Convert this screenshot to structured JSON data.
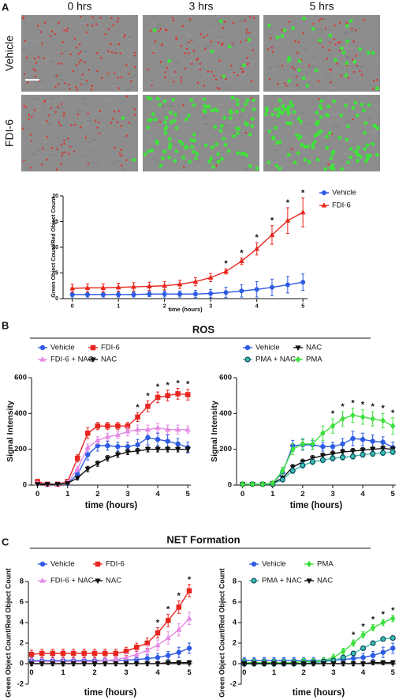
{
  "panel_a": {
    "label": "A",
    "columns": [
      "0 hrs",
      "3 hrs",
      "5 hrs"
    ],
    "rows": [
      "Vehicle",
      "FDI-6"
    ]
  },
  "panel_b": {
    "label": "B",
    "title": "ROS"
  },
  "panel_c": {
    "label": "C",
    "title": "NET Formation"
  },
  "chart_data": [
    {
      "type": "line",
      "xlabel": "time (hours)",
      "ylabel": "Green Object Count/Red Object Count",
      "x": [
        0,
        0.33,
        0.67,
        1,
        1.33,
        1.67,
        2,
        2.33,
        2.67,
        3,
        3.33,
        3.67,
        4,
        4.33,
        4.67,
        5
      ],
      "xlim": [
        -0.2,
        5.1
      ],
      "xticks": [
        0,
        1,
        2,
        3,
        4,
        5
      ],
      "ylim": [
        0,
        20
      ],
      "yticks": [
        0,
        5,
        10,
        15,
        20
      ],
      "legend": "right",
      "legend_columns": 1,
      "series": [
        {
          "name": "Vehicle",
          "color": "#2d5be3",
          "marker": "circle",
          "values": [
            0.8,
            0.8,
            0.8,
            0.8,
            0.8,
            0.9,
            0.9,
            0.9,
            0.9,
            1.0,
            1.2,
            1.5,
            1.8,
            2.2,
            2.7,
            3.2
          ],
          "errors": [
            0.5,
            0.5,
            0.5,
            0.5,
            0.5,
            0.5,
            0.6,
            0.6,
            0.7,
            0.8,
            1.0,
            1.2,
            1.5,
            1.6,
            1.6,
            1.6
          ]
        },
        {
          "name": "FDI-6",
          "color": "#e8261f",
          "marker": "triangle",
          "values": [
            2.0,
            2.1,
            2.1,
            2.2,
            2.3,
            2.4,
            2.5,
            2.8,
            3.3,
            4.1,
            5.3,
            7.3,
            9.7,
            12.4,
            15.2,
            16.8
          ],
          "errors": [
            0.8,
            0.8,
            0.8,
            0.8,
            0.8,
            0.8,
            0.8,
            0.8,
            0.8,
            0.8,
            0.5,
            0.6,
            1.2,
            1.8,
            2.5,
            2.8
          ]
        }
      ],
      "annotations": [
        {
          "x": 3.33,
          "text": "*"
        },
        {
          "x": 3.67,
          "text": "*"
        },
        {
          "x": 4,
          "text": "*"
        },
        {
          "x": 4.33,
          "text": "*"
        },
        {
          "x": 4.67,
          "text": "*"
        },
        {
          "x": 5,
          "text": "*"
        }
      ]
    },
    {
      "type": "line",
      "xlabel": "time (hours)",
      "ylabel": "Signal Intensity",
      "x": [
        0,
        0.33,
        0.67,
        1,
        1.33,
        1.67,
        2,
        2.33,
        2.67,
        3,
        3.33,
        3.67,
        4,
        4.33,
        4.67,
        5
      ],
      "xlim": [
        -0.2,
        5.1
      ],
      "xticks": [
        0,
        1,
        2,
        3,
        4,
        5
      ],
      "ylim": [
        0,
        600
      ],
      "yticks": [
        0,
        200,
        400,
        600
      ],
      "legend": "upper left",
      "legend_columns": 2,
      "series": [
        {
          "name": "Vehicle",
          "color": "#2d5be3",
          "marker": "circle",
          "values": [
            10,
            5,
            5,
            10,
            60,
            170,
            220,
            220,
            215,
            215,
            225,
            265,
            255,
            245,
            230,
            210
          ],
          "errors": [
            10,
            5,
            5,
            10,
            20,
            30,
            30,
            25,
            25,
            25,
            30,
            40,
            35,
            35,
            30,
            30
          ]
        },
        {
          "name": "FDI-6",
          "color": "#e8261f",
          "marker": "square",
          "values": [
            20,
            5,
            5,
            20,
            150,
            290,
            330,
            330,
            330,
            330,
            380,
            440,
            490,
            500,
            510,
            505
          ],
          "errors": [
            10,
            5,
            5,
            10,
            20,
            30,
            20,
            20,
            20,
            20,
            25,
            30,
            30,
            30,
            30,
            30
          ]
        },
        {
          "name": "FDI-6 + NAC",
          "color": "#e58be6",
          "marker": "triangle",
          "values": [
            10,
            5,
            5,
            15,
            90,
            210,
            250,
            270,
            280,
            300,
            310,
            310,
            320,
            310,
            310,
            310
          ],
          "errors": [
            10,
            5,
            5,
            10,
            15,
            20,
            20,
            20,
            20,
            25,
            25,
            25,
            25,
            25,
            25,
            20
          ]
        },
        {
          "name": "NAC",
          "color": "#111111",
          "marker": "triangle-down",
          "values": [
            5,
            5,
            5,
            10,
            40,
            90,
            120,
            150,
            170,
            185,
            190,
            200,
            200,
            200,
            200,
            200
          ],
          "errors": [
            5,
            5,
            5,
            5,
            10,
            15,
            15,
            15,
            15,
            15,
            15,
            15,
            15,
            15,
            15,
            15
          ]
        }
      ],
      "annotations": [
        {
          "x": 3.33,
          "text": "*"
        },
        {
          "x": 3.67,
          "text": "*"
        },
        {
          "x": 4,
          "text": "*"
        },
        {
          "x": 4.33,
          "text": "*"
        },
        {
          "x": 4.67,
          "text": "*"
        },
        {
          "x": 5,
          "text": "*"
        }
      ]
    },
    {
      "type": "line",
      "xlabel": "time (hours)",
      "ylabel": "Signal Intensity",
      "x": [
        0,
        0.33,
        0.67,
        1,
        1.33,
        1.67,
        2,
        2.33,
        2.67,
        3,
        3.33,
        3.67,
        4,
        4.33,
        4.67,
        5
      ],
      "xlim": [
        -0.2,
        5.1
      ],
      "xticks": [
        0,
        1,
        2,
        3,
        4,
        5
      ],
      "ylim": [
        0,
        600
      ],
      "yticks": [
        0,
        200,
        400,
        600
      ],
      "legend": "upper left",
      "legend_columns": 2,
      "series": [
        {
          "name": "Vehicle",
          "color": "#2d5be3",
          "marker": "circle",
          "values": [
            5,
            5,
            5,
            10,
            70,
            220,
            225,
            225,
            215,
            215,
            230,
            260,
            255,
            245,
            240,
            210
          ],
          "errors": [
            5,
            5,
            5,
            10,
            20,
            30,
            30,
            25,
            25,
            25,
            30,
            40,
            35,
            35,
            30,
            30
          ]
        },
        {
          "name": "NAC",
          "color": "#111111",
          "marker": "triangle-down",
          "values": [
            5,
            5,
            5,
            10,
            40,
            100,
            130,
            150,
            165,
            175,
            185,
            190,
            195,
            200,
            205,
            200
          ],
          "errors": [
            5,
            5,
            5,
            5,
            10,
            15,
            15,
            15,
            15,
            15,
            15,
            15,
            15,
            15,
            15,
            15
          ]
        },
        {
          "name": "PMA + NAC",
          "color": "#35c0b0",
          "edgecolor": "#0a2a4a",
          "marker": "circle",
          "values": [
            5,
            5,
            5,
            5,
            30,
            80,
            110,
            130,
            140,
            150,
            155,
            160,
            170,
            175,
            180,
            185
          ],
          "errors": [
            5,
            5,
            5,
            5,
            10,
            15,
            15,
            15,
            15,
            15,
            15,
            15,
            15,
            15,
            15,
            15
          ]
        },
        {
          "name": "PMA",
          "color": "#3de03d",
          "marker": "diamond",
          "values": [
            5,
            5,
            5,
            10,
            80,
            200,
            230,
            230,
            290,
            330,
            370,
            390,
            380,
            370,
            360,
            330
          ],
          "errors": [
            5,
            5,
            5,
            10,
            20,
            30,
            30,
            30,
            40,
            40,
            40,
            40,
            40,
            40,
            40,
            45
          ]
        }
      ],
      "annotations": [
        {
          "x": 3,
          "text": "*"
        },
        {
          "x": 3.33,
          "text": "*"
        },
        {
          "x": 3.67,
          "text": "*"
        },
        {
          "x": 4,
          "text": "*"
        },
        {
          "x": 4.33,
          "text": "*"
        },
        {
          "x": 4.67,
          "text": "*"
        },
        {
          "x": 5,
          "text": "*"
        }
      ]
    },
    {
      "type": "line",
      "xlabel": "time (hours)",
      "ylabel": "Green Object Count/Red Object Count",
      "x": [
        0,
        0.33,
        0.67,
        1,
        1.33,
        1.67,
        2,
        2.33,
        2.67,
        3,
        3.33,
        3.67,
        4,
        4.33,
        4.67,
        5
      ],
      "xlim": [
        -0.1,
        5.1
      ],
      "xticks": [
        0,
        1,
        2,
        3,
        4,
        5
      ],
      "ylim": [
        -2,
        8
      ],
      "yticks": [
        -2,
        0,
        2,
        4,
        6,
        8
      ],
      "legend": "upper left",
      "legend_columns": 2,
      "series": [
        {
          "name": "Vehicle",
          "color": "#2d5be3",
          "marker": "circle",
          "values": [
            0.3,
            0.3,
            0.3,
            0.3,
            0.3,
            0.3,
            0.3,
            0.3,
            0.3,
            0.35,
            0.4,
            0.5,
            0.6,
            0.8,
            1.1,
            1.5
          ],
          "errors": [
            0.3,
            0.3,
            0.3,
            0.3,
            0.3,
            0.3,
            0.3,
            0.3,
            0.3,
            0.3,
            0.3,
            0.4,
            0.4,
            0.4,
            0.5,
            0.5
          ]
        },
        {
          "name": "FDI-6",
          "color": "#e8261f",
          "marker": "square",
          "values": [
            0.9,
            1.0,
            1.0,
            1.0,
            1.0,
            1.0,
            1.0,
            1.0,
            1.0,
            1.2,
            1.6,
            2.0,
            3.0,
            4.2,
            5.5,
            7.1
          ],
          "errors": [
            0.4,
            0.4,
            0.4,
            0.4,
            0.4,
            0.4,
            0.4,
            0.4,
            0.4,
            0.4,
            0.4,
            0.5,
            0.5,
            0.6,
            0.6,
            0.6
          ]
        },
        {
          "name": "FDI-6 + NAC",
          "color": "#e58be6",
          "marker": "triangle",
          "values": [
            0.2,
            0.2,
            0.2,
            0.2,
            0.2,
            0.2,
            0.2,
            0.3,
            0.4,
            0.6,
            0.9,
            1.3,
            1.8,
            2.5,
            3.3,
            4.4
          ],
          "errors": [
            0.3,
            0.3,
            0.3,
            0.3,
            0.3,
            0.3,
            0.3,
            0.3,
            0.3,
            0.4,
            0.4,
            0.5,
            0.5,
            0.6,
            0.6,
            0.6
          ]
        },
        {
          "name": "NAC",
          "color": "#111111",
          "marker": "triangle-down",
          "values": [
            0,
            0,
            0,
            0,
            0,
            0,
            0,
            0,
            0,
            0,
            0,
            0,
            0,
            0.1,
            0.1,
            0.1
          ],
          "errors": [
            0.2,
            0.2,
            0.2,
            0.2,
            0.2,
            0.2,
            0.2,
            0.2,
            0.2,
            0.2,
            0.2,
            0.2,
            0.2,
            0.2,
            0.2,
            0.2
          ]
        }
      ],
      "annotations": [
        {
          "x": 4,
          "text": "*"
        },
        {
          "x": 4.33,
          "text": "*"
        },
        {
          "x": 4.67,
          "text": "*"
        },
        {
          "x": 5,
          "text": "*"
        }
      ]
    },
    {
      "type": "line",
      "xlabel": "time (hours)",
      "ylabel": "Green Object Count/Red Object Count",
      "x": [
        0,
        0.33,
        0.67,
        1,
        1.33,
        1.67,
        2,
        2.33,
        2.67,
        3,
        3.33,
        3.67,
        4,
        4.33,
        4.67,
        5
      ],
      "xlim": [
        -0.1,
        5.1
      ],
      "xticks": [
        0,
        1,
        2,
        3,
        4,
        5
      ],
      "ylim": [
        -2,
        8
      ],
      "yticks": [
        -2,
        0,
        2,
        4,
        6,
        8
      ],
      "legend": "upper left",
      "legend_columns": 2,
      "series": [
        {
          "name": "Vehicle",
          "color": "#2d5be3",
          "marker": "circle",
          "values": [
            0.3,
            0.3,
            0.3,
            0.3,
            0.3,
            0.3,
            0.3,
            0.3,
            0.3,
            0.35,
            0.4,
            0.5,
            0.6,
            0.8,
            1.1,
            1.5
          ],
          "errors": [
            0.3,
            0.3,
            0.3,
            0.3,
            0.3,
            0.3,
            0.3,
            0.3,
            0.3,
            0.3,
            0.3,
            0.4,
            0.4,
            0.4,
            0.5,
            0.5
          ]
        },
        {
          "name": "PMA",
          "color": "#3de03d",
          "marker": "diamond",
          "values": [
            0.1,
            0.1,
            0.1,
            0.1,
            0.1,
            0.1,
            0.2,
            0.2,
            0.3,
            0.6,
            1.2,
            2.0,
            2.8,
            3.5,
            4.0,
            4.4
          ],
          "errors": [
            0.3,
            0.3,
            0.3,
            0.3,
            0.3,
            0.3,
            0.3,
            0.3,
            0.3,
            0.3,
            0.3,
            0.3,
            0.3,
            0.3,
            0.3,
            0.3
          ]
        },
        {
          "name": "PMA + NAC",
          "color": "#35c0b0",
          "edgecolor": "#0a2a4a",
          "marker": "circle",
          "values": [
            0,
            0,
            0,
            0,
            0,
            0,
            0,
            0.1,
            0.2,
            0.3,
            0.6,
            1.0,
            1.5,
            2.0,
            2.4,
            2.5
          ],
          "errors": [
            0.2,
            0.2,
            0.2,
            0.2,
            0.2,
            0.2,
            0.2,
            0.2,
            0.2,
            0.2,
            0.2,
            0.2,
            0.2,
            0.2,
            0.2,
            0.2
          ]
        },
        {
          "name": "NAC",
          "color": "#111111",
          "marker": "triangle-down",
          "values": [
            0,
            0,
            0,
            0,
            0,
            0,
            0,
            0,
            0,
            0,
            0,
            0,
            0,
            0.1,
            0.1,
            0.1
          ],
          "errors": [
            0.2,
            0.2,
            0.2,
            0.2,
            0.2,
            0.2,
            0.2,
            0.2,
            0.2,
            0.2,
            0.2,
            0.2,
            0.2,
            0.2,
            0.2,
            0.2
          ]
        }
      ],
      "annotations": [
        {
          "x": 3.67,
          "text": "*"
        },
        {
          "x": 4,
          "text": "*"
        },
        {
          "x": 4.33,
          "text": "*"
        },
        {
          "x": 4.67,
          "text": "*"
        },
        {
          "x": 5,
          "text": "*"
        }
      ]
    }
  ]
}
